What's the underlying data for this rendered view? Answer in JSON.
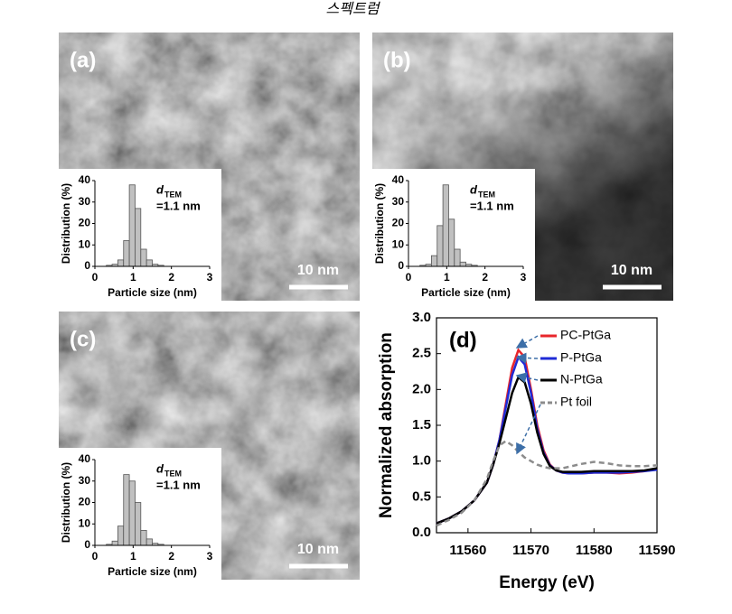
{
  "caption": "스펙트럼",
  "chart_data": [
    {
      "type": "histogram",
      "panel_label": "(a)",
      "scale_bar": "10 nm",
      "bins": [
        0.3,
        0.45,
        0.6,
        0.75,
        0.9,
        1.05,
        1.2,
        1.35,
        1.5,
        1.65,
        1.8
      ],
      "values": [
        0.5,
        1,
        3,
        12,
        38,
        27,
        8,
        3,
        1,
        0.5
      ],
      "color": "#c0c0c0",
      "xlim": [
        0,
        3
      ],
      "xticks": [
        0,
        1,
        2,
        3
      ],
      "ylim": [
        0,
        40
      ],
      "yticks": [
        0,
        10,
        20,
        30,
        40
      ],
      "x_label": "Particle size (nm)",
      "y_label": "Distribution (%)",
      "annotation_symbol": "d",
      "annotation_subscript": "TEM",
      "annotation_value": "=1.1 nm"
    },
    {
      "type": "histogram",
      "panel_label": "(b)",
      "scale_bar": "10 nm",
      "bins": [
        0.3,
        0.45,
        0.6,
        0.75,
        0.9,
        1.05,
        1.2,
        1.35,
        1.5,
        1.65,
        1.8
      ],
      "values": [
        0.5,
        1,
        5,
        19,
        38,
        22,
        8,
        2,
        1,
        0.5
      ],
      "color": "#c0c0c0",
      "xlim": [
        0,
        3
      ],
      "xticks": [
        0,
        1,
        2,
        3
      ],
      "ylim": [
        0,
        40
      ],
      "yticks": [
        0,
        10,
        20,
        30,
        40
      ],
      "x_label": "Particle size (nm)",
      "y_label": "Distribution (%)",
      "annotation_symbol": "d",
      "annotation_subscript": "TEM",
      "annotation_value": "=1.1 nm"
    },
    {
      "type": "histogram",
      "panel_label": "(c)",
      "scale_bar": "10 nm",
      "bins": [
        0.3,
        0.45,
        0.6,
        0.75,
        0.9,
        1.05,
        1.2,
        1.35,
        1.5,
        1.65,
        1.8
      ],
      "values": [
        0.5,
        2,
        9,
        33,
        30,
        20,
        7,
        3,
        1,
        0.5
      ],
      "color": "#c0c0c0",
      "xlim": [
        0,
        3
      ],
      "xticks": [
        0,
        1,
        2,
        3
      ],
      "ylim": [
        0,
        40
      ],
      "yticks": [
        0,
        10,
        20,
        30,
        40
      ],
      "x_label": "Particle size (nm)",
      "y_label": "Distribution (%)",
      "annotation_symbol": "d",
      "annotation_subscript": "TEM",
      "annotation_value": "=1.1 nm"
    },
    {
      "type": "line",
      "panel_label": "(d)",
      "x_label": "Energy (eV)",
      "y_label": "Normalized absorption",
      "x": [
        11555,
        11557,
        11559,
        11561,
        11563,
        11564,
        11565,
        11566,
        11567,
        11568,
        11569,
        11570,
        11571,
        11572,
        11573,
        11574,
        11575,
        11576,
        11578,
        11580,
        11582,
        11584,
        11586,
        11588,
        11590
      ],
      "xlim": [
        11555,
        11590
      ],
      "xticks": [
        11560,
        11570,
        11580,
        11590
      ],
      "ylim": [
        0,
        3
      ],
      "yticks": [
        {
          "value": 0,
          "label": "0.0"
        },
        {
          "value": 0.5,
          "label": "0.5"
        },
        {
          "value": 1,
          "label": "1.0"
        },
        {
          "value": 1.5,
          "label": "1.5"
        },
        {
          "value": 2,
          "label": "2.0"
        },
        {
          "value": 2.5,
          "label": "2.5"
        },
        {
          "value": 3,
          "label": "3.0"
        }
      ],
      "series": [
        {
          "name": "PC-PtGa",
          "color": "#e8262b",
          "dashed": false,
          "values": [
            0.13,
            0.2,
            0.3,
            0.45,
            0.7,
            0.95,
            1.3,
            1.8,
            2.3,
            2.55,
            2.45,
            2.0,
            1.5,
            1.15,
            0.95,
            0.87,
            0.84,
            0.83,
            0.83,
            0.84,
            0.84,
            0.83,
            0.84,
            0.86,
            0.89
          ]
        },
        {
          "name": "P-PtGa",
          "color": "#1f2bd6",
          "dashed": false,
          "values": [
            0.13,
            0.2,
            0.3,
            0.45,
            0.7,
            0.95,
            1.3,
            1.75,
            2.2,
            2.45,
            2.35,
            1.95,
            1.45,
            1.12,
            0.94,
            0.87,
            0.84,
            0.83,
            0.83,
            0.84,
            0.84,
            0.84,
            0.85,
            0.86,
            0.88
          ]
        },
        {
          "name": "N-PtGa",
          "color": "#000000",
          "dashed": false,
          "values": [
            0.13,
            0.2,
            0.3,
            0.45,
            0.7,
            0.95,
            1.25,
            1.6,
            1.95,
            2.17,
            2.1,
            1.8,
            1.4,
            1.1,
            0.93,
            0.87,
            0.85,
            0.85,
            0.85,
            0.86,
            0.86,
            0.86,
            0.86,
            0.87,
            0.9
          ]
        },
        {
          "name": "Pt foil",
          "color": "#8c8c8c",
          "dashed": true,
          "values": [
            0.1,
            0.18,
            0.28,
            0.45,
            0.75,
            1.0,
            1.22,
            1.28,
            1.22,
            1.13,
            1.05,
            1.0,
            0.95,
            0.92,
            0.9,
            0.9,
            0.9,
            0.92,
            0.96,
            0.99,
            0.97,
            0.94,
            0.93,
            0.93,
            0.94
          ]
        }
      ]
    }
  ]
}
